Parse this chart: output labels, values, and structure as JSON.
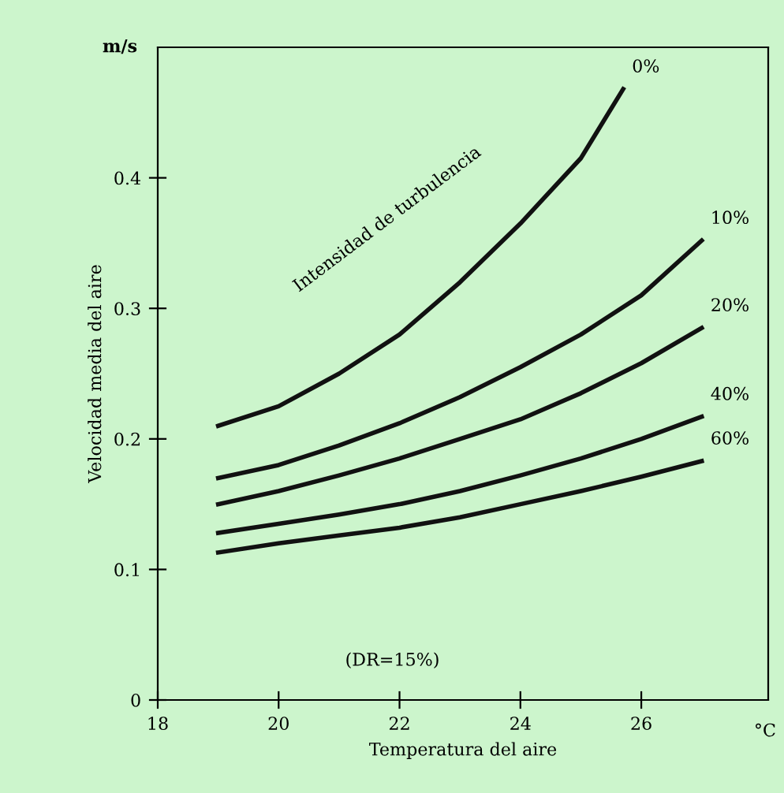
{
  "chart_data": {
    "type": "line",
    "xlabel": "Temperatura del aire",
    "ylabel": "Velocidad media del aire",
    "x": [
      19,
      20,
      21,
      22,
      23,
      24,
      25,
      26,
      27
    ],
    "series": [
      {
        "name": "0%",
        "color": "#111111",
        "x": [
          19,
          20,
          21,
          22,
          23,
          24,
          25,
          25.7
        ],
        "values": [
          0.21,
          0.225,
          0.25,
          0.28,
          0.32,
          0.365,
          0.415,
          0.468
        ]
      },
      {
        "name": "10%",
        "color": "#111111",
        "values": [
          0.17,
          0.18,
          0.195,
          0.212,
          0.232,
          0.255,
          0.28,
          0.31,
          0.352
        ]
      },
      {
        "name": "20%",
        "color": "#111111",
        "values": [
          0.15,
          0.16,
          0.172,
          0.185,
          0.2,
          0.215,
          0.235,
          0.258,
          0.285
        ]
      },
      {
        "name": "40%",
        "color": "#111111",
        "values": [
          0.128,
          0.135,
          0.142,
          0.15,
          0.16,
          0.172,
          0.185,
          0.2,
          0.217
        ]
      },
      {
        "name": "60%",
        "color": "#111111",
        "values": [
          0.113,
          0.12,
          0.126,
          0.132,
          0.14,
          0.15,
          0.16,
          0.171,
          0.183
        ]
      }
    ],
    "xlim": [
      18,
      28.1
    ],
    "ylim": [
      0,
      0.5
    ],
    "xticks": [
      18,
      20,
      22,
      24,
      26
    ],
    "yticks": [
      0,
      0.1,
      0.2,
      0.3,
      0.4
    ],
    "annotations": [
      "m/s",
      "°C",
      "Intensidad de turbulencia",
      "(DR=15%)"
    ],
    "grid": false,
    "legend": false,
    "marker": "none",
    "line_style": "solid"
  }
}
